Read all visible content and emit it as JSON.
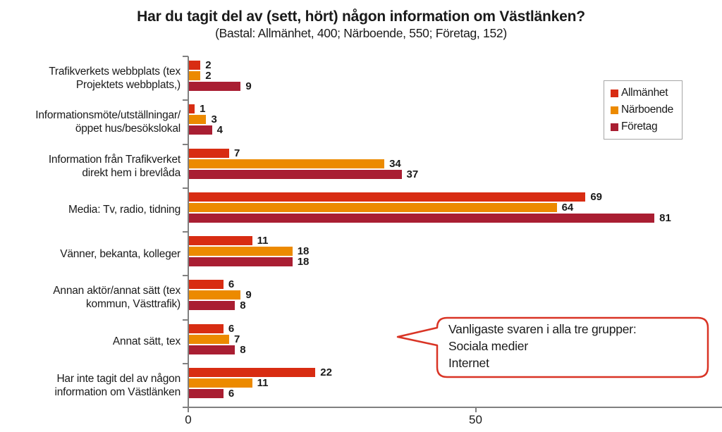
{
  "title": "Har du tagit del av (sett, hört) någon information om Västlänken?",
  "subtitle": "(Bastal: Allmänhet, 400; Närboende, 550; Företag, 152)",
  "chart_data": {
    "type": "bar",
    "orientation": "horizontal",
    "categories": [
      [
        "Trafikverkets webbplats (tex",
        "Projektets webbplats,)"
      ],
      [
        "Informationsmöte/utställningar/",
        "öppet hus/besökslokal"
      ],
      [
        "Information från Trafikverket",
        "direkt hem i brevlåda"
      ],
      [
        "Media: Tv, radio, tidning"
      ],
      [
        "Vänner, bekanta, kolleger"
      ],
      [
        "Annan aktör/annat sätt (tex",
        "kommun, Västtrafik)"
      ],
      [
        "Annat sätt, tex"
      ],
      [
        "Har inte tagit del av någon",
        "information om Västlänken"
      ]
    ],
    "series": [
      {
        "name": "Allmänhet",
        "color": "#d82c12",
        "values": [
          2,
          1,
          7,
          69,
          11,
          6,
          6,
          22
        ]
      },
      {
        "name": "Närboende",
        "color": "#ec8a00",
        "values": [
          2,
          3,
          34,
          64,
          18,
          9,
          7,
          11
        ]
      },
      {
        "name": "Företag",
        "color": "#a91e32",
        "values": [
          9,
          4,
          37,
          81,
          18,
          8,
          8,
          6
        ]
      }
    ],
    "xlim": [
      0,
      92
    ],
    "xticks": [
      0,
      50
    ],
    "grid": false,
    "legend_position": "upper-right",
    "axis_color": "#808080"
  },
  "callout": {
    "lines": [
      "Vanligaste svaren i alla tre grupper:",
      "Sociala medier",
      "Internet"
    ],
    "border_color": "#d93425"
  }
}
